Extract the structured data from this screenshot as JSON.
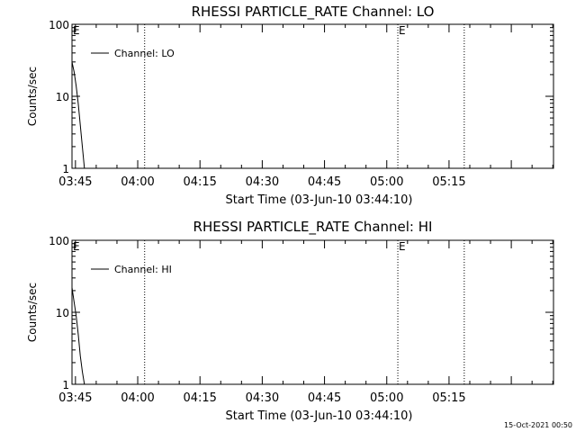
{
  "footer_timestamp": "15-Oct-2021 00:50",
  "chart_data": [
    {
      "type": "line",
      "title": "RHESSI PARTICLE_RATE Channel: LO",
      "xlabel": "Start Time (03-Jun-10 03:44:10)",
      "ylabel": "Counts/sec",
      "y_scale": "log",
      "ylim": [
        1,
        100
      ],
      "xlim": [
        "03:44:10",
        "05:40:10"
      ],
      "x_ticks": [
        "03:45",
        "04:00",
        "04:15",
        "04:30",
        "04:45",
        "05:00",
        "05:15"
      ],
      "y_ticks": [
        "1",
        "10",
        "100"
      ],
      "legend": "top-left",
      "series": [
        {
          "name": "Channel: LO",
          "color": "#000000",
          "x": [
            "03:44:10",
            "03:44:40",
            "03:45:10",
            "03:45:40",
            "03:46:10",
            "03:46:40",
            "03:47:10"
          ],
          "y": [
            30,
            22,
            14,
            8,
            4,
            2,
            1
          ]
        }
      ],
      "vlines": [
        {
          "x": "04:01:40",
          "label": ""
        },
        {
          "x": "05:02:40",
          "label": "E"
        },
        {
          "x": "05:18:40",
          "label": ""
        }
      ],
      "corner_marker": "E"
    },
    {
      "type": "line",
      "title": "RHESSI PARTICLE_RATE Channel: HI",
      "xlabel": "Start Time (03-Jun-10 03:44:10)",
      "ylabel": "Counts/sec",
      "y_scale": "log",
      "ylim": [
        1,
        100
      ],
      "xlim": [
        "03:44:10",
        "05:40:10"
      ],
      "x_ticks": [
        "03:45",
        "04:00",
        "04:15",
        "04:30",
        "04:45",
        "05:00",
        "05:15"
      ],
      "y_ticks": [
        "1",
        "10",
        "100"
      ],
      "legend": "top-left",
      "series": [
        {
          "name": "Channel: HI",
          "color": "#000000",
          "x": [
            "03:44:10",
            "03:44:40",
            "03:45:10",
            "03:45:40",
            "03:46:10",
            "03:46:40",
            "03:47:10"
          ],
          "y": [
            22,
            14,
            9,
            5,
            2.5,
            1.5,
            1
          ]
        }
      ],
      "vlines": [
        {
          "x": "04:01:40",
          "label": ""
        },
        {
          "x": "05:02:40",
          "label": "E"
        },
        {
          "x": "05:18:40",
          "label": ""
        }
      ],
      "corner_marker": "E"
    }
  ]
}
